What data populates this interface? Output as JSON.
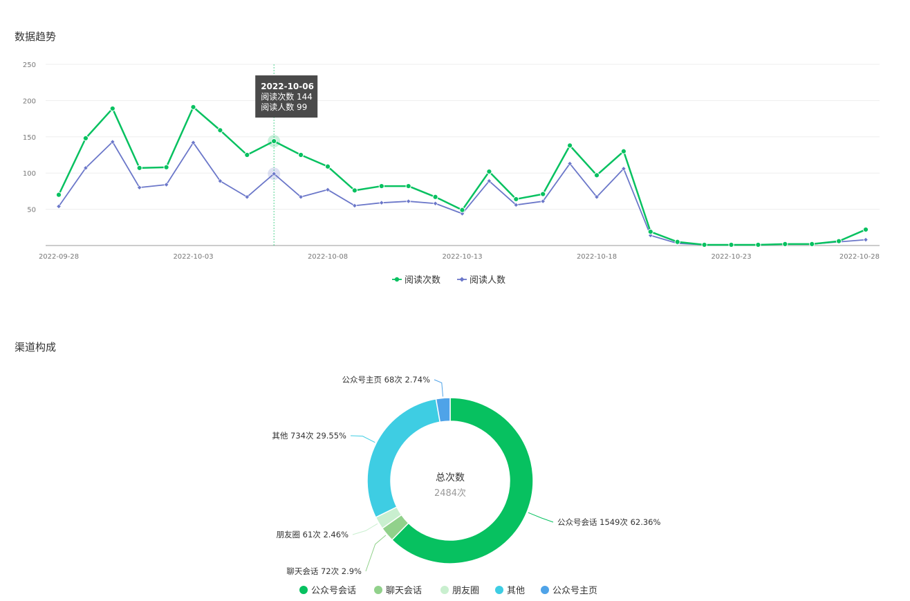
{
  "sections": {
    "trend_title": "数据趋势",
    "channel_title": "渠道构成"
  },
  "colors": {
    "reads": "#07c160",
    "readers": "#6b77c9",
    "grid": "#eeeeee",
    "axis": "#bbbbbb",
    "crosshair": "#07c160"
  },
  "chart_data": [
    {
      "type": "line",
      "x": [
        "2022-09-28",
        "2022-09-29",
        "2022-09-30",
        "2022-10-01",
        "2022-10-02",
        "2022-10-03",
        "2022-10-04",
        "2022-10-05",
        "2022-10-06",
        "2022-10-07",
        "2022-10-08",
        "2022-10-09",
        "2022-10-10",
        "2022-10-11",
        "2022-10-12",
        "2022-10-13",
        "2022-10-14",
        "2022-10-15",
        "2022-10-16",
        "2022-10-17",
        "2022-10-18",
        "2022-10-19",
        "2022-10-20",
        "2022-10-21",
        "2022-10-22",
        "2022-10-23",
        "2022-10-24",
        "2022-10-25",
        "2022-10-26",
        "2022-10-27",
        "2022-10-28"
      ],
      "x_tick_labels": [
        "2022-09-28",
        "2022-10-03",
        "2022-10-08",
        "2022-10-13",
        "2022-10-18",
        "2022-10-23",
        "2022-10-28"
      ],
      "y_ticks": [
        50,
        100,
        150,
        200,
        250
      ],
      "ylim": [
        0,
        250
      ],
      "grid": true,
      "legend_position": "bottom",
      "series": [
        {
          "name": "阅读次数",
          "values": [
            70,
            148,
            189,
            107,
            108,
            191,
            159,
            125,
            144,
            125,
            109,
            76,
            82,
            82,
            67,
            49,
            102,
            64,
            71,
            138,
            97,
            130,
            19,
            5,
            1,
            1,
            1,
            2,
            2,
            6,
            22
          ]
        },
        {
          "name": "阅读人数",
          "values": [
            54,
            107,
            143,
            80,
            84,
            142,
            89,
            67,
            99,
            67,
            77,
            55,
            59,
            61,
            58,
            44,
            89,
            56,
            61,
            113,
            67,
            106,
            14,
            3,
            1,
            1,
            1,
            2,
            2,
            5,
            8
          ]
        }
      ],
      "tooltip": {
        "date": "2022-10-06",
        "lines": [
          "阅读次数 144",
          "阅读人数 99"
        ]
      }
    },
    {
      "type": "pie",
      "center_title": "总次数",
      "center_value": "2484次",
      "legend_position": "bottom",
      "slices": [
        {
          "name": "公众号会话",
          "value": 1549,
          "label": "公众号会话 1549次 62.36%",
          "color": "#07c160"
        },
        {
          "name": "聊天会话",
          "value": 72,
          "label": "聊天会话 72次 2.9%",
          "color": "#91d18b"
        },
        {
          "name": "朋友圈",
          "value": 61,
          "label": "朋友圈 61次 2.46%",
          "color": "#c9efcf"
        },
        {
          "name": "其他",
          "value": 734,
          "label": "其他 734次 29.55%",
          "color": "#3ecde3"
        },
        {
          "name": "公众号主页",
          "value": 68,
          "label": "公众号主页 68次 2.74%",
          "color": "#4fa3e8"
        }
      ]
    }
  ]
}
